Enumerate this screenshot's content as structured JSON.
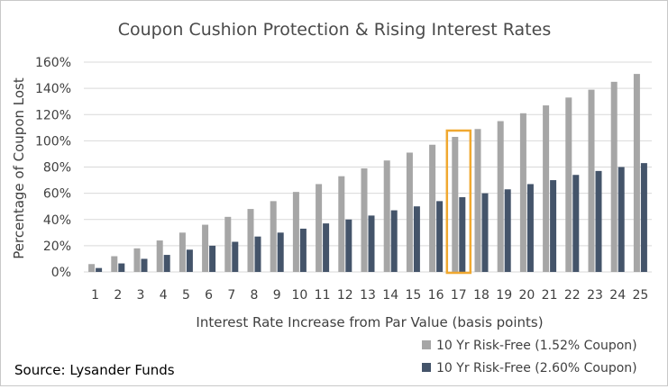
{
  "chart_data": {
    "type": "bar",
    "title": "Coupon Cushion Protection & Rising Interest Rates",
    "xlabel": "Interest Rate Increase from Par Value (basis points)",
    "ylabel": "Percentage of Coupon Lost",
    "ylim": [
      0,
      160
    ],
    "y_tick_values": [
      0,
      20,
      40,
      60,
      80,
      100,
      120,
      140,
      160
    ],
    "y_tick_labels": [
      "0%",
      "20%",
      "40%",
      "60%",
      "80%",
      "100%",
      "120%",
      "140%",
      "160%"
    ],
    "grid": true,
    "legend_position": "bottom-right",
    "categories": [
      "1",
      "2",
      "3",
      "4",
      "5",
      "6",
      "7",
      "8",
      "9",
      "10",
      "11",
      "12",
      "13",
      "14",
      "15",
      "16",
      "17",
      "18",
      "19",
      "20",
      "21",
      "22",
      "23",
      "24",
      "25"
    ],
    "series": [
      {
        "name": "10 Yr Risk-Free (1.52% Coupon)",
        "color": "#a6a6a6",
        "values": [
          6,
          12,
          18,
          24,
          30,
          36,
          42,
          48,
          54,
          61,
          67,
          73,
          79,
          85,
          91,
          97,
          103,
          109,
          115,
          121,
          127,
          133,
          139,
          145,
          151
        ]
      },
      {
        "name": "10 Yr Risk-Free (2.60% Coupon)",
        "color": "#44546a",
        "values": [
          3,
          6.5,
          10,
          13,
          17,
          20,
          23,
          27,
          30,
          33,
          37,
          40,
          43,
          47,
          50,
          54,
          57,
          60,
          63,
          67,
          70,
          74,
          77,
          80,
          83
        ]
      }
    ],
    "highlight": {
      "category": "17",
      "color": "#f0a830"
    },
    "source": "Source: Lysander Funds"
  }
}
